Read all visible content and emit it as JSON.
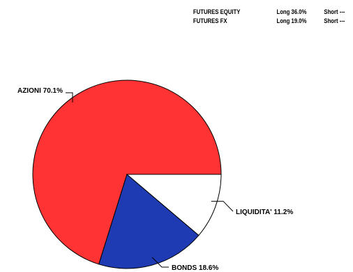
{
  "futures": [
    {
      "name": "FUTURES EQUITY",
      "long": "Long 36.0%",
      "short": "Short ---"
    },
    {
      "name": "FUTURES FX",
      "long": "Long 19.0%",
      "short": "Short ---"
    }
  ],
  "chart_data": {
    "type": "pie",
    "slices": [
      {
        "label": "AZIONI",
        "value": 70.1,
        "display": "AZIONI 70.1%",
        "color": "#ff3333"
      },
      {
        "label": "BONDS",
        "value": 18.6,
        "display": "BONDS 18.6%",
        "color": "#1e3bb3"
      },
      {
        "label": "LIQUIDITA'",
        "value": 11.2,
        "display": "LIQUIDITA' 11.2%",
        "color": "#ffffff"
      }
    ],
    "start_angle_deg": 0,
    "direction": "counterclockwise",
    "outline_color": "#000000"
  }
}
